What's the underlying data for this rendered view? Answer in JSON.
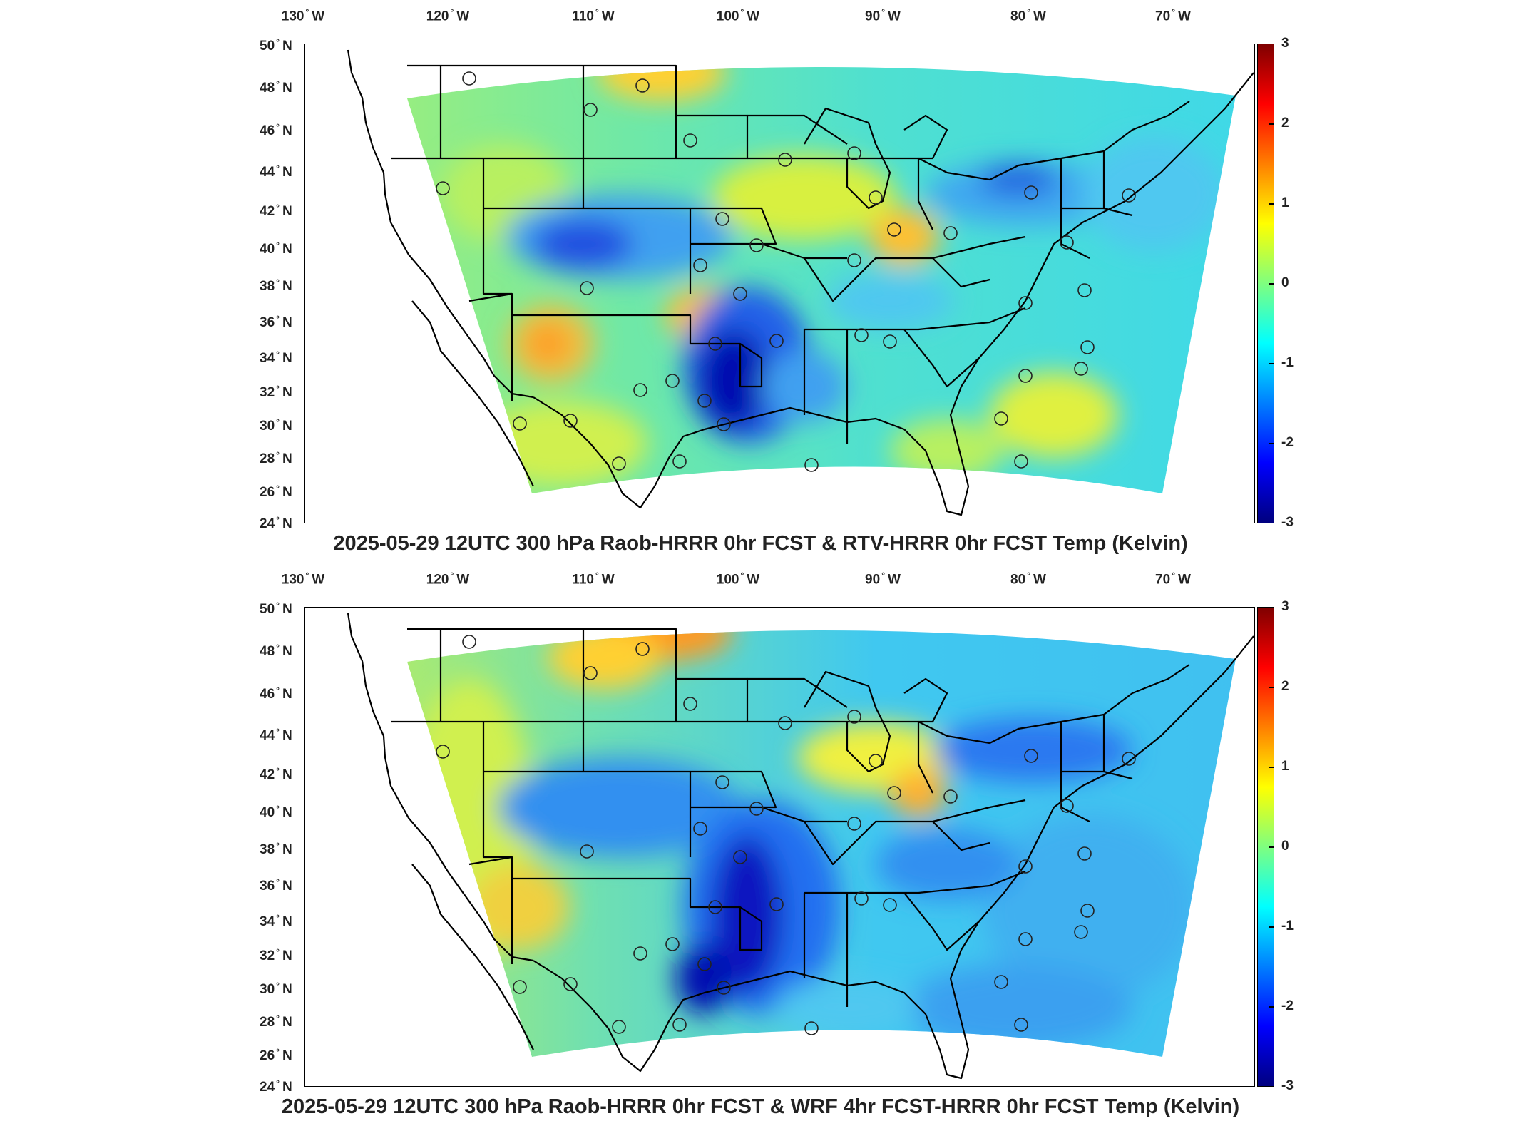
{
  "longitude_labels": [
    {
      "deg": "130",
      "hem": "W"
    },
    {
      "deg": "120",
      "hem": "W"
    },
    {
      "deg": "110",
      "hem": "W"
    },
    {
      "deg": "100",
      "hem": "W"
    },
    {
      "deg": "90",
      "hem": "W"
    },
    {
      "deg": "80",
      "hem": "W"
    },
    {
      "deg": "70",
      "hem": "W"
    }
  ],
  "latitude_labels": [
    {
      "deg": "50",
      "hem": "N"
    },
    {
      "deg": "48",
      "hem": "N"
    },
    {
      "deg": "46",
      "hem": "N"
    },
    {
      "deg": "44",
      "hem": "N"
    },
    {
      "deg": "42",
      "hem": "N"
    },
    {
      "deg": "40",
      "hem": "N"
    },
    {
      "deg": "38",
      "hem": "N"
    },
    {
      "deg": "36",
      "hem": "N"
    },
    {
      "deg": "34",
      "hem": "N"
    },
    {
      "deg": "32",
      "hem": "N"
    },
    {
      "deg": "30",
      "hem": "N"
    },
    {
      "deg": "28",
      "hem": "N"
    },
    {
      "deg": "26",
      "hem": "N"
    },
    {
      "deg": "24",
      "hem": "N"
    }
  ],
  "colorbar": {
    "ticks": [
      "3",
      "2",
      "1",
      "0",
      "-1",
      "-2",
      "-3"
    ],
    "range": [
      -3,
      3
    ],
    "colormap": "jet",
    "colors": [
      "#00007f",
      "#0000ff",
      "#007fff",
      "#00ffff",
      "#7fff7f",
      "#ffff00",
      "#ff7f00",
      "#ff0000",
      "#7f0000"
    ]
  },
  "panels": [
    {
      "title": "2025-05-29 12UTC 300 hPa Raob-HRRR 0hr FCST & RTV-HRRR 0hr FCST Temp (Kelvin)"
    },
    {
      "title": "2025-05-29 12UTC 300 hPa Raob-HRRR 0hr FCST & WRF 4hr FCST-HRRR 0hr FCST Temp (Kelvin)"
    }
  ]
}
